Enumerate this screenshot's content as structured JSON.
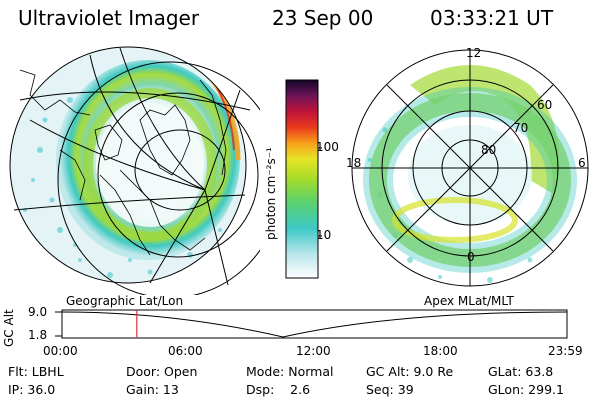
{
  "header": {
    "instrument": "Ultraviolet Imager",
    "date": "23 Sep 00",
    "time": "03:33:21 UT"
  },
  "colorbar": {
    "unit_label": "photon cm⁻²s⁻¹",
    "ticks": [
      "100",
      "10"
    ]
  },
  "left_panel": {
    "label": "Geographic Lat/Lon"
  },
  "right_panel": {
    "label": "Apex MLat/MLT",
    "mlt_labels": {
      "top": "12",
      "left": "18",
      "right": "6",
      "bottom": "0"
    },
    "lat_labels": [
      "60",
      "70",
      "80"
    ]
  },
  "timeline": {
    "axis_label": "GC Alt",
    "y_ticks": [
      "9.0",
      "1.8"
    ],
    "x_ticks": [
      "00:00",
      "06:00",
      "12:00",
      "18:00",
      "23:59"
    ],
    "cursor_time_hours": 3.5558
  },
  "info": {
    "flt": "Flt: LBHL",
    "door": "Door: Open",
    "mode": "Mode: Normal",
    "gc_alt": "GC Alt: 9.0 Re",
    "glat": "GLat:  63.8",
    "ip": "IP: 36.0",
    "gain": "Gain: 13",
    "dsp": "Dsp:    2.6",
    "seq": "Seq: 39",
    "glon": "GLon: 299.1"
  }
}
